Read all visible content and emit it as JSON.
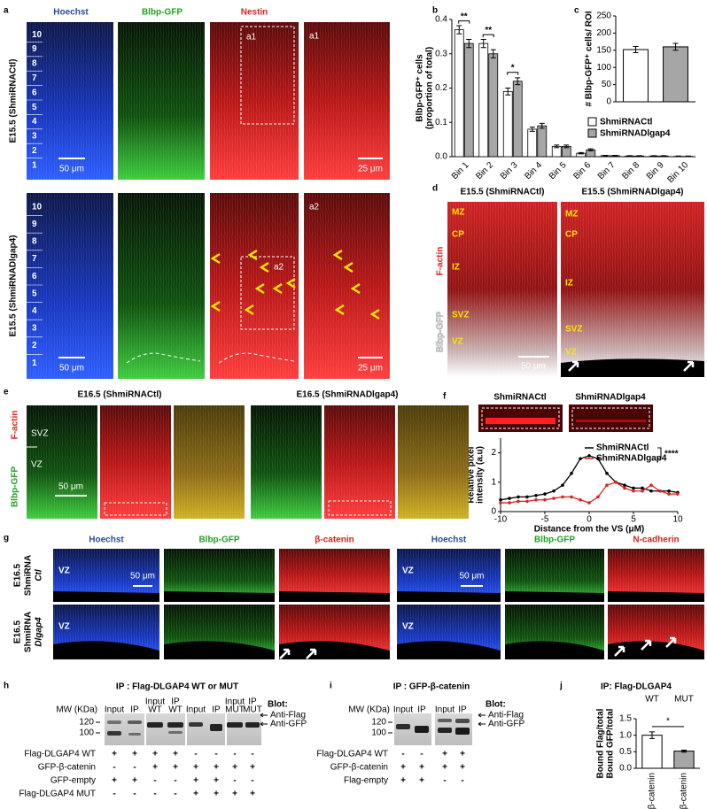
{
  "panel_letters": [
    "a",
    "b",
    "c",
    "d",
    "e",
    "f",
    "g",
    "h",
    "i",
    "j"
  ],
  "panel_a": {
    "columns": [
      "Hoechst",
      "Blbp-GFP",
      "Nestin"
    ],
    "rows": [
      "E15.5 (ShmiRNACtl)",
      "E15.5 (ShmiRNADlgap4)"
    ],
    "insets": [
      "a1",
      "a2"
    ],
    "bins": [
      1,
      2,
      3,
      4,
      5,
      6,
      7,
      8,
      9,
      10
    ],
    "scale_bars": [
      "50 μm",
      "25 μm"
    ]
  },
  "panel_d": {
    "titles": [
      "E15.5 (ShmiRNACtl)",
      "E15.5 (ShmiRNADlgap4)"
    ],
    "zones": [
      "MZ",
      "CP",
      "IZ",
      "SVZ",
      "VZ"
    ],
    "stains": [
      "F-actin",
      "Blbp-GFP"
    ],
    "scale_bar": "50 μm"
  },
  "panel_e": {
    "titles": [
      "E16.5 (ShmiRNACtl)",
      "E16.5 (ShmiRNADlgap4)"
    ],
    "zones": [
      "SVZ",
      "VZ"
    ],
    "stains": [
      "F-actin",
      "Blbp-GFP"
    ],
    "scale_bar": "50 μm"
  },
  "panel_g": {
    "columns": [
      "Hoechst",
      "Blbp-GFP",
      "β-catenin",
      "Hoechst",
      "Blbp-GFP",
      "N-cadherin"
    ],
    "rows": [
      [
        "E16.5",
        "ShmiRNA",
        "Ctl"
      ],
      [
        "E16.5",
        "ShmiRNA",
        "Dlgap4"
      ]
    ],
    "zone": "VZ",
    "scale_bar": "50 μm"
  },
  "panel_h": {
    "title": "IP : Flag-DLGAP4 WT or MUT",
    "mw_label": "MW (KDa)",
    "lanes": [
      [
        "Input"
      ],
      [
        "IP"
      ],
      [
        "Input",
        "WT"
      ],
      [
        "IP",
        "WT"
      ],
      [
        "Input"
      ],
      [
        "IP"
      ],
      [
        "Input",
        "MUT"
      ],
      [
        "IP",
        "MUT"
      ]
    ],
    "markers": [
      120,
      100
    ],
    "blot_label": "Blot:",
    "antibodies": [
      "Anti-Flag",
      "Anti-GFP"
    ],
    "rows": [
      {
        "label": "Flag-DLGAP4 WT",
        "signs": [
          "+",
          "+",
          "+",
          "+",
          "-",
          "-",
          "-",
          "-"
        ]
      },
      {
        "label": "GFP-β-catenin",
        "signs": [
          "-",
          "-",
          "+",
          "+",
          "+",
          "+",
          "+",
          "+"
        ]
      },
      {
        "label": "GFP-empty",
        "signs": [
          "+",
          "+",
          "-",
          "-",
          "+",
          "+",
          "-",
          "-"
        ]
      },
      {
        "label": "Flag-DLGAP4 MUT",
        "signs": [
          "-",
          "-",
          "-",
          "-",
          "+",
          "+",
          "+",
          "+"
        ]
      }
    ]
  },
  "panel_i": {
    "title": "IP : GFP-β-catenin",
    "mw_label": "MW (KDa)",
    "lanes": [
      [
        "Input"
      ],
      [
        "IP"
      ],
      [
        "Input"
      ],
      [
        "IP"
      ]
    ],
    "markers": [
      120,
      100
    ],
    "blot_label": "Blot:",
    "antibodies": [
      "Anti-Flag",
      "Anti-GFP"
    ],
    "rows": [
      {
        "label": "Flag-DLGAP4 WT",
        "signs": [
          "-",
          "-",
          "+",
          "+"
        ]
      },
      {
        "label": "GFP-β-catenin",
        "signs": [
          "+",
          "+",
          "+",
          "+"
        ]
      },
      {
        "label": "Flag-empty",
        "signs": [
          "+",
          "+",
          "-",
          "-"
        ]
      }
    ]
  },
  "chart_data": [
    {
      "type": "grouped-bar",
      "ylabel": [
        "Blbp-GFP⁺ cells",
        "(proportion of total)"
      ],
      "categories": [
        "Bin 1",
        "Bin 2",
        "Bin 3",
        "Bin 4",
        "Bin 5",
        "Bin 6",
        "Bin 7",
        "Bin 8",
        "Bin 9",
        "Bin 10"
      ],
      "series": [
        {
          "name": "ShmiRNACtl",
          "color": "#ffffff",
          "values": [
            0.37,
            0.33,
            0.19,
            0.08,
            0.03,
            0.01,
            0.003,
            0.002,
            0.002,
            0.001
          ],
          "errors": [
            0.012,
            0.012,
            0.01,
            0.006,
            0.004,
            0.002,
            0.001,
            0.001,
            0.001,
            0.001
          ]
        },
        {
          "name": "ShmiRNADlgap4",
          "color": "#a6a6a6",
          "values": [
            0.33,
            0.3,
            0.22,
            0.09,
            0.03,
            0.02,
            0.003,
            0.002,
            0.002,
            0.001
          ],
          "errors": [
            0.012,
            0.012,
            0.01,
            0.007,
            0.004,
            0.003,
            0.001,
            0.001,
            0.001,
            0.001
          ]
        }
      ],
      "ylim": [
        0,
        0.4
      ],
      "yticks": [
        {
          "value": 0,
          "label": "0.0"
        },
        0.1,
        0.2,
        0.3,
        0.4
      ],
      "annotations": [
        "**",
        "**",
        "*"
      ]
    },
    {
      "type": "bar",
      "ylabel": [
        "# Blbp-GFP⁺ cells/ ROI"
      ],
      "categories": [
        null,
        null
      ],
      "values": [
        152,
        160
      ],
      "errors": [
        9,
        10
      ],
      "colors": [
        "#ffffff",
        "#a6a6a6"
      ],
      "ylim": [
        0,
        250
      ],
      "yticks": [
        0,
        50,
        100,
        150,
        200,
        250
      ]
    },
    {
      "type": "line",
      "inset_labels": [
        "ShmiRNACtl",
        "ShmiRNADlgap4"
      ],
      "ylabel": [
        "Relative pixel",
        "intensity (a.u)"
      ],
      "xlabel": "Distance from the VS (μM)",
      "x": [
        -10,
        -9,
        -8,
        -7,
        -6,
        -5,
        -4,
        -3,
        -2,
        -1,
        0,
        1,
        2,
        3,
        4,
        5,
        6,
        7,
        8,
        9,
        10
      ],
      "series": [
        {
          "name": "ShmiRNACtl",
          "color": "#000000",
          "values": [
            0.4,
            0.45,
            0.5,
            0.5,
            0.55,
            0.6,
            0.7,
            0.9,
            1.3,
            1.8,
            1.9,
            1.8,
            1.3,
            1.0,
            0.9,
            0.8,
            0.8,
            0.7,
            0.7,
            0.7,
            0.65
          ]
        },
        {
          "name": "ShmiRNADlgap4",
          "color": "#e02020",
          "values": [
            0.3,
            0.3,
            0.35,
            0.35,
            0.4,
            0.4,
            0.45,
            0.5,
            0.5,
            0.4,
            0.3,
            0.5,
            0.9,
            1.0,
            0.8,
            0.7,
            0.7,
            0.9,
            0.7,
            0.6,
            0.6
          ]
        }
      ],
      "xlim": [
        -10,
        10
      ],
      "xticks": [
        -10,
        -5,
        0,
        5,
        10
      ],
      "ylim": [
        0,
        2.5
      ],
      "yticks": [
        0,
        1,
        2
      ],
      "annotation": "****"
    },
    {
      "type": "bar",
      "title": "IP: Flag-DLGAP4",
      "group_labels": [
        "WT",
        "MUT"
      ],
      "categories": [
        "β-catenin",
        "β-catenin"
      ],
      "values": [
        1.0,
        0.52
      ],
      "errors": [
        0.1,
        0.03
      ],
      "colors": [
        "#ffffff",
        "#a6a6a6"
      ],
      "ylabel": [
        "Bound Flag/total",
        "Bound GFP/total"
      ],
      "ylim": [
        0,
        1.5
      ],
      "yticks": [
        {
          "value": 0,
          "label": "0.0"
        },
        0.5,
        {
          "value": 1,
          "label": "1.0"
        },
        1.5
      ],
      "annotation": "*"
    }
  ]
}
